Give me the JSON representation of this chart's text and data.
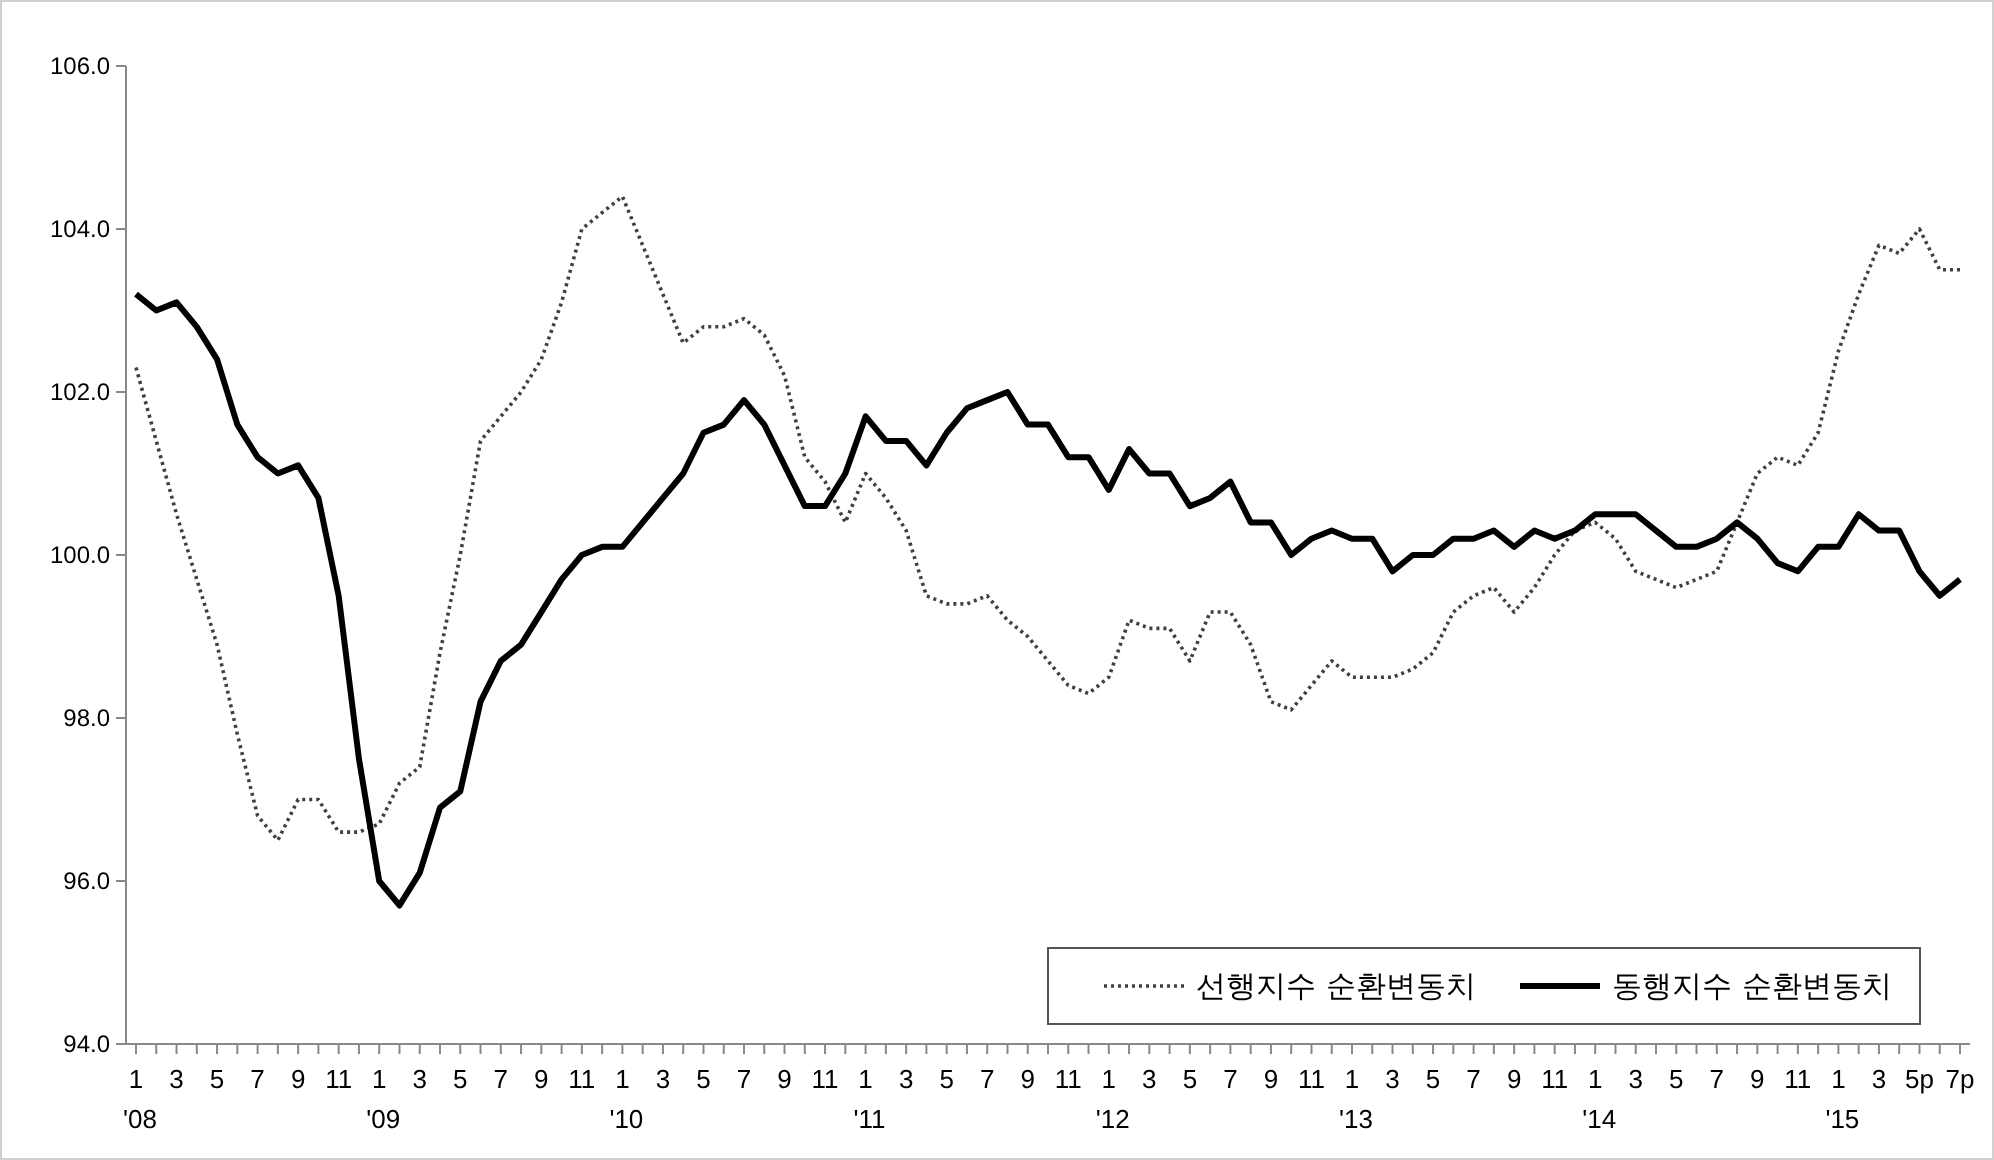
{
  "chart_data": {
    "type": "line",
    "categories": [
      "1\n'08",
      null,
      "3",
      null,
      "5",
      null,
      "7",
      null,
      "9",
      null,
      "11",
      null,
      "1\n'09",
      null,
      "3",
      null,
      "5",
      null,
      "7",
      null,
      "9",
      null,
      "11",
      null,
      "1\n'10",
      null,
      "3",
      null,
      "5",
      null,
      "7",
      null,
      "9",
      null,
      "11",
      null,
      "1\n'11",
      null,
      "3",
      null,
      "5",
      null,
      "7",
      null,
      "9",
      null,
      "11",
      null,
      "1\n'12",
      null,
      "3",
      null,
      "5",
      null,
      "7",
      null,
      "9",
      null,
      "11",
      null,
      "1\n'13",
      null,
      "3",
      null,
      "5",
      null,
      "7",
      null,
      "9",
      null,
      "11",
      null,
      "1\n'14",
      null,
      "3",
      null,
      "5",
      null,
      "7",
      null,
      "9",
      null,
      "11",
      null,
      "1\n'15",
      null,
      "3",
      null,
      "5p",
      null,
      "7p"
    ],
    "series": [
      {
        "name": "선행지수 순환변동치",
        "color": "#404040",
        "line_style": "dotted",
        "values": [
          102.3,
          101.4,
          100.5,
          99.7,
          98.9,
          97.8,
          96.8,
          96.5,
          97.0,
          97.0,
          96.6,
          96.6,
          96.7,
          97.2,
          97.4,
          98.8,
          100.0,
          101.4,
          101.7,
          102.0,
          102.4,
          103.1,
          104.0,
          104.2,
          104.4,
          103.8,
          103.2,
          102.6,
          102.8,
          102.8,
          102.9,
          102.7,
          102.2,
          101.2,
          100.9,
          100.4,
          101.0,
          100.7,
          100.3,
          99.5,
          99.4,
          99.4,
          99.5,
          99.2,
          99.0,
          98.7,
          98.4,
          98.3,
          98.5,
          99.2,
          99.1,
          99.1,
          98.7,
          99.3,
          99.3,
          98.9,
          98.2,
          98.1,
          98.4,
          98.7,
          98.5,
          98.5,
          98.5,
          98.6,
          98.8,
          99.3,
          99.5,
          99.6,
          99.3,
          99.6,
          100.0,
          100.3,
          100.4,
          100.2,
          99.8,
          99.7,
          99.6,
          99.7,
          99.8,
          100.4,
          101.0,
          101.2,
          101.1,
          101.5,
          102.5,
          103.2,
          103.8,
          103.7,
          104.0,
          103.5,
          103.5
        ]
      },
      {
        "name": "동행지수 순환변동치",
        "color": "#000000",
        "line_style": "solid",
        "values": [
          103.2,
          103.0,
          103.1,
          102.8,
          102.4,
          101.6,
          101.2,
          101.0,
          101.1,
          100.7,
          99.5,
          97.5,
          96.0,
          95.7,
          96.1,
          96.9,
          97.1,
          98.2,
          98.7,
          98.9,
          99.3,
          99.7,
          100.0,
          100.1,
          100.1,
          100.4,
          100.7,
          101.0,
          101.5,
          101.6,
          101.9,
          101.6,
          101.1,
          100.6,
          100.6,
          101.0,
          101.7,
          101.4,
          101.4,
          101.1,
          101.5,
          101.8,
          101.9,
          102.0,
          101.6,
          101.6,
          101.2,
          101.2,
          100.8,
          101.3,
          101.0,
          101.0,
          100.6,
          100.7,
          100.9,
          100.4,
          100.4,
          100.0,
          100.2,
          100.3,
          100.2,
          100.2,
          99.8,
          100.0,
          100.0,
          100.2,
          100.2,
          100.3,
          100.1,
          100.3,
          100.2,
          100.3,
          100.5,
          100.5,
          100.5,
          100.3,
          100.1,
          100.1,
          100.2,
          100.4,
          100.2,
          99.9,
          99.8,
          100.1,
          100.1,
          100.5,
          100.3,
          100.3,
          99.8,
          99.5,
          99.7
        ]
      }
    ],
    "ylim": [
      94,
      106
    ],
    "yticks": [
      {
        "value": 94,
        "label": "94.0"
      },
      {
        "value": 96,
        "label": "96.0"
      },
      {
        "value": 98,
        "label": "98.0"
      },
      {
        "value": 100,
        "label": "100.0"
      },
      {
        "value": 102,
        "label": "102.0"
      },
      {
        "value": 104,
        "label": "104.0"
      },
      {
        "value": 106,
        "label": "106.0"
      }
    ],
    "grid": false,
    "legend": "bottom right"
  }
}
